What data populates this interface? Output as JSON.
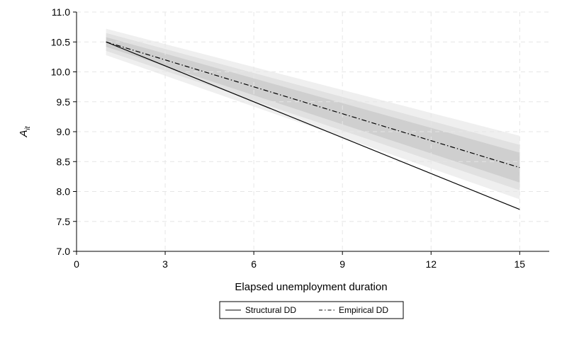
{
  "chart_data": {
    "type": "line",
    "title": "",
    "xlabel": "Elapsed unemployment duration",
    "ylabel_main": "A",
    "ylabel_sub": "it",
    "xlim": [
      0,
      16
    ],
    "ylim": [
      7.0,
      11.0
    ],
    "x_ticks": [
      "0",
      "3",
      "6",
      "9",
      "12",
      "15"
    ],
    "x_tick_values": [
      0,
      3,
      6,
      9,
      12,
      15
    ],
    "y_ticks": [
      "7.0",
      "7.5",
      "8.0",
      "8.5",
      "9.0",
      "9.5",
      "10.0",
      "10.5",
      "11.0"
    ],
    "y_tick_values": [
      7.0,
      7.5,
      8.0,
      8.5,
      9.0,
      9.5,
      10.0,
      10.5,
      11.0
    ],
    "grid": true,
    "legend_position": "bottom",
    "series": [
      {
        "name": "Structural DD",
        "style": "solid",
        "color": "#000000",
        "x": [
          1,
          15
        ],
        "y": [
          10.5,
          7.7
        ]
      },
      {
        "name": "Empirical DD",
        "style": "dash-dot",
        "color": "#000000",
        "x": [
          1,
          15
        ],
        "y": [
          10.5,
          8.4
        ]
      }
    ],
    "confidence_bands": [
      {
        "color": "#efefef",
        "x": [
          1,
          15
        ],
        "upper": [
          10.72,
          8.93
        ],
        "lower": [
          10.28,
          7.87
        ]
      },
      {
        "color": "#e1e1e1",
        "x": [
          1,
          15
        ],
        "upper": [
          10.65,
          8.78
        ],
        "lower": [
          10.35,
          8.02
        ]
      },
      {
        "color": "#cfcfcf",
        "x": [
          1,
          15
        ],
        "upper": [
          10.58,
          8.65
        ],
        "lower": [
          10.42,
          8.15
        ]
      }
    ]
  }
}
